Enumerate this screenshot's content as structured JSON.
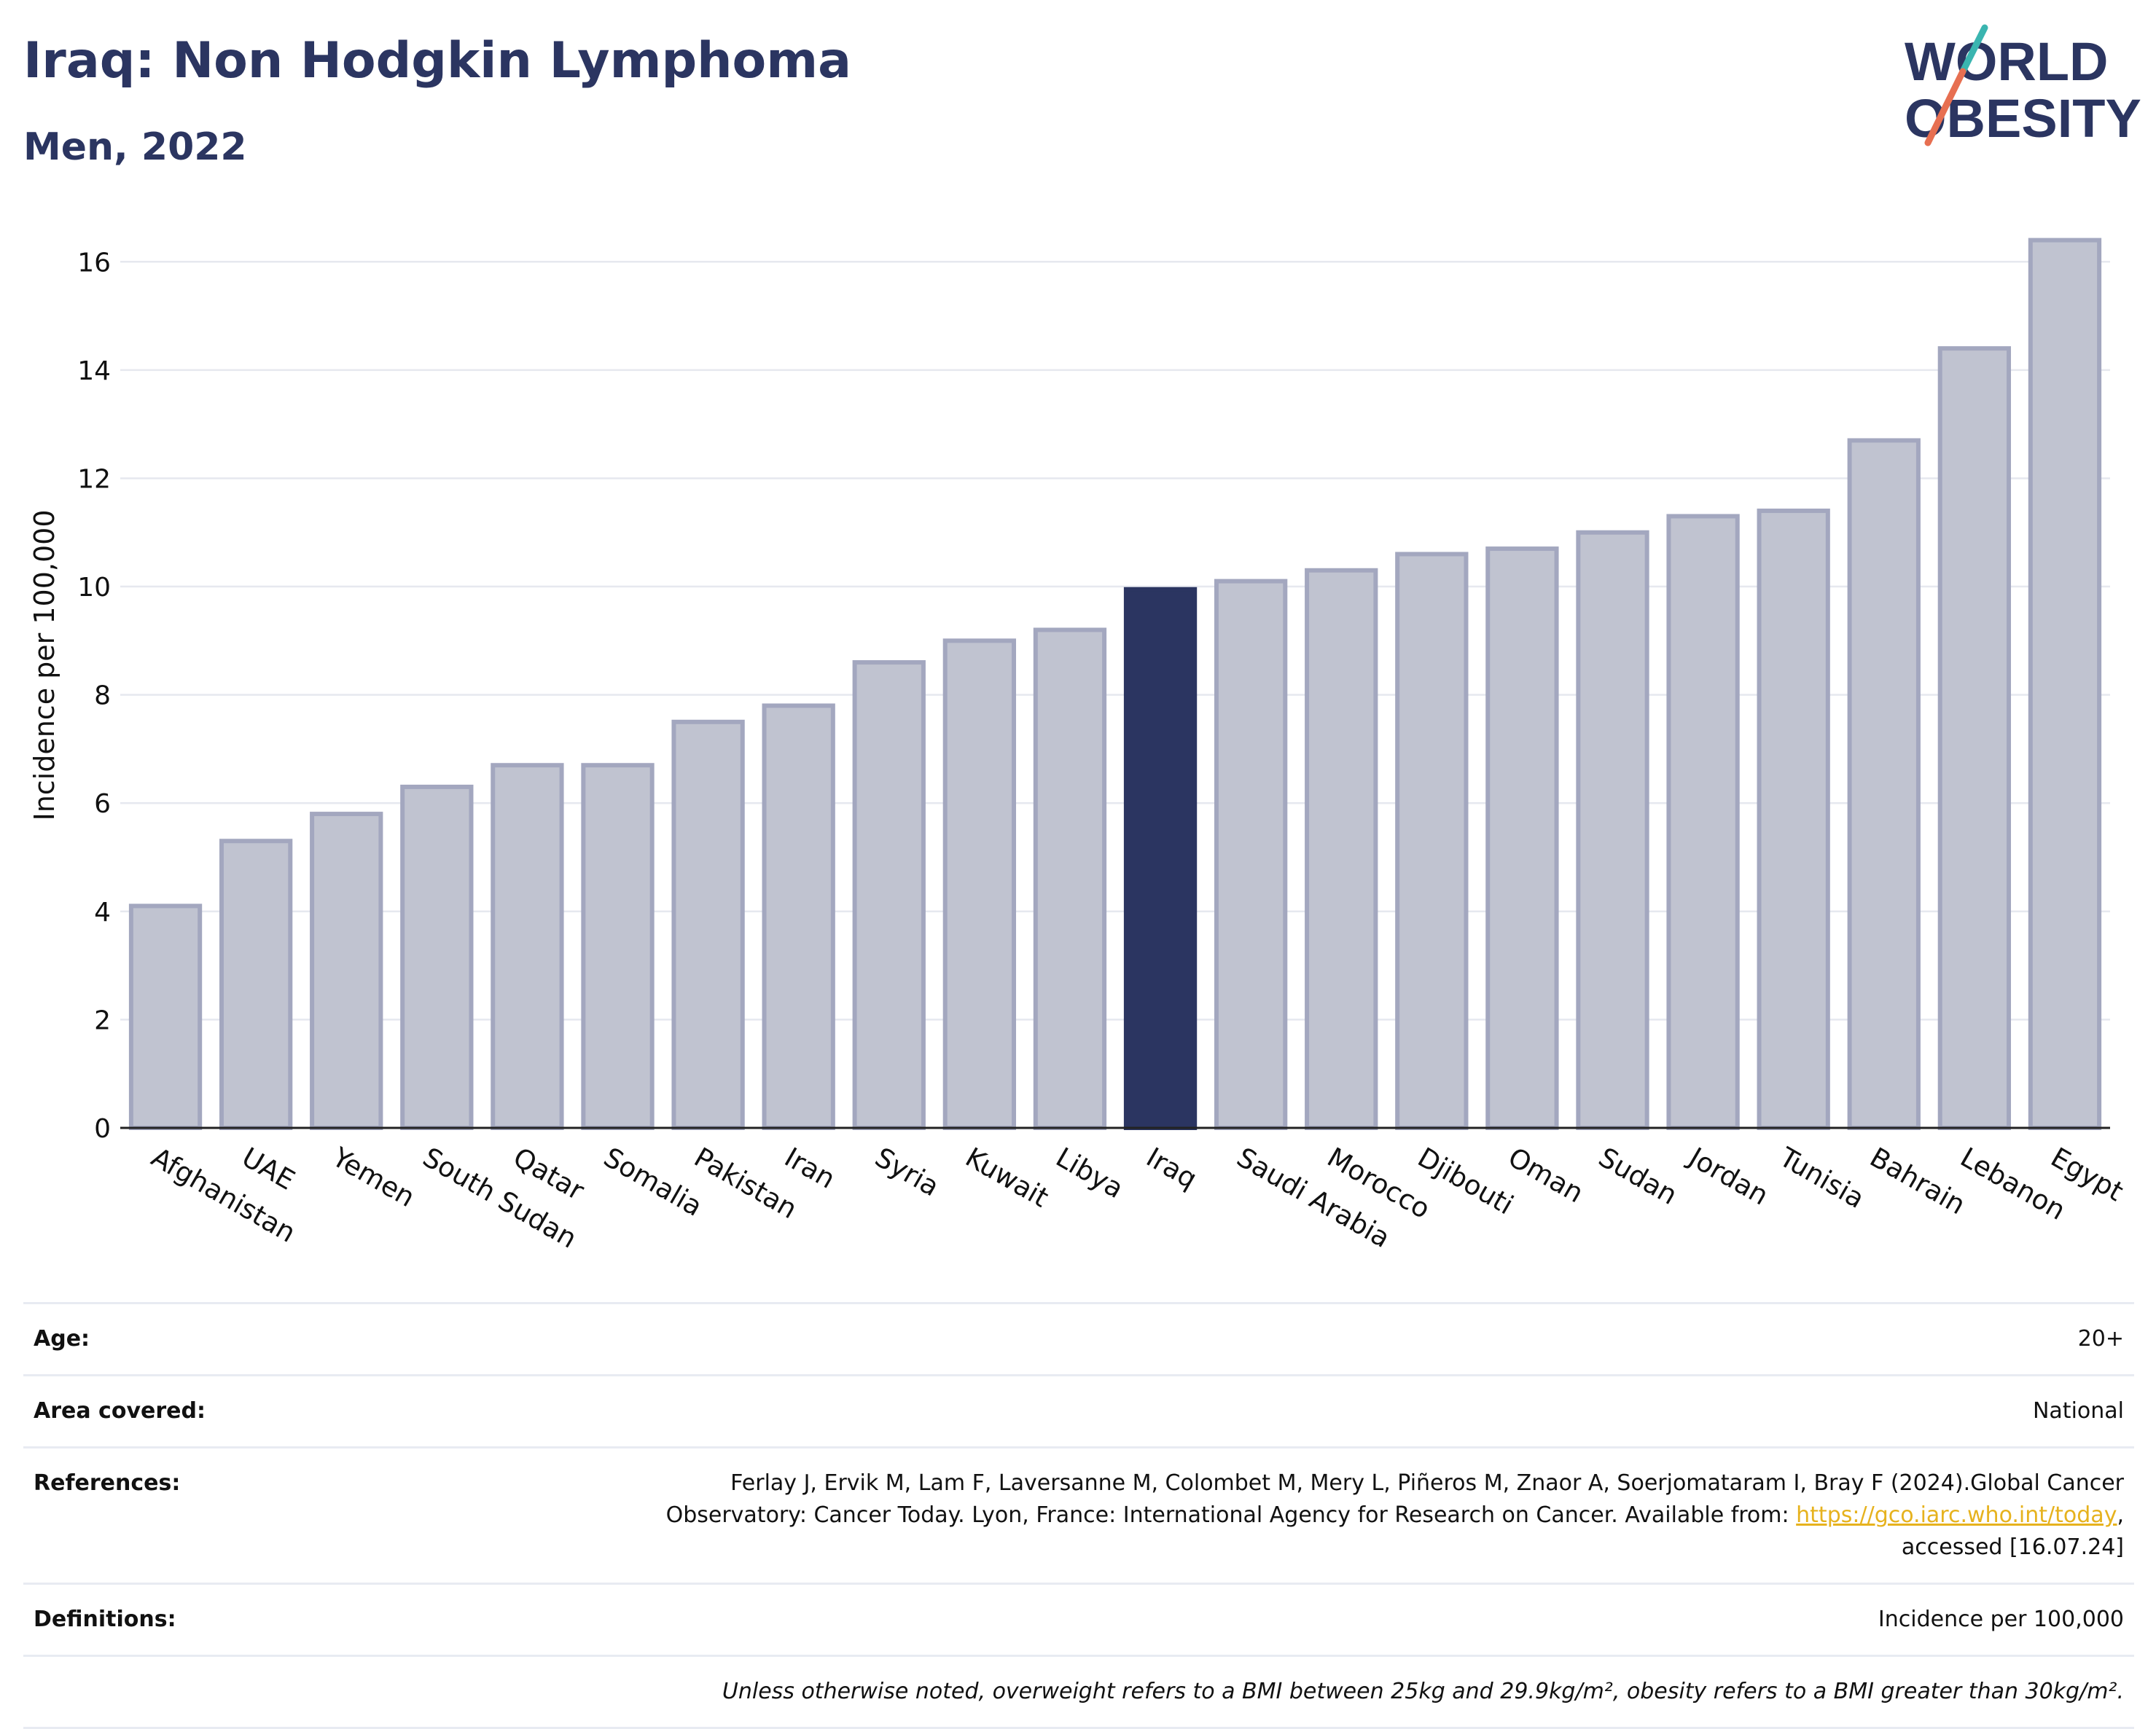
{
  "header": {
    "title": "Iraq: Non Hodgkin Lymphoma",
    "subtitle": "Men, 2022"
  },
  "logo": {
    "line1": "WORLD",
    "line2": "OBESITY",
    "accent_colors": [
      "#3ab5b0",
      "#e76f51"
    ]
  },
  "chart_data": {
    "type": "bar",
    "categories": [
      "Afghanistan",
      "UAE",
      "Yemen",
      "South Sudan",
      "Qatar",
      "Somalia",
      "Pakistan",
      "Iran",
      "Syria",
      "Kuwait",
      "Libya",
      "Iraq",
      "Saudi Arabia",
      "Morocco",
      "Djibouti",
      "Oman",
      "Sudan",
      "Jordan",
      "Tunisia",
      "Bahrain",
      "Lebanon",
      "Egypt"
    ],
    "values": [
      4.1,
      5.3,
      5.8,
      6.3,
      6.7,
      6.7,
      7.5,
      7.8,
      8.6,
      9.0,
      9.2,
      9.95,
      10.1,
      10.3,
      10.6,
      10.7,
      11.0,
      11.3,
      11.4,
      12.7,
      14.4,
      16.4
    ],
    "highlight": "Iraq",
    "ylabel": "Incidence per 100,000",
    "xlabel": "",
    "ylim": [
      0,
      17
    ],
    "yticks": [
      0,
      2,
      4,
      6,
      8,
      10,
      12,
      14,
      16
    ],
    "grid": true,
    "colors": {
      "bar": "#c0c3d0",
      "bar_border": "#a3a7bf",
      "highlight": "#2b3561"
    }
  },
  "meta": {
    "age_label": "Age:",
    "age_value": "20+",
    "area_label": "Area covered:",
    "area_value": "National",
    "references_label": "References:",
    "references_line1": "Ferlay J, Ervik M, Lam F, Laversanne M, Colombet M, Mery L, Piñeros M, Znaor A, Soerjomataram I, Bray F (2024).Global Cancer",
    "references_line2_pre": "Observatory: Cancer Today. Lyon, France: International Agency for Research on Cancer. Available from: ",
    "references_link": "https://gco.iarc.who.int/today",
    "references_line2_post": ",",
    "references_line3": "accessed [16.07.24]",
    "definitions_label": "Definitions:",
    "definitions_value": "Incidence per 100,000",
    "note": "Unless otherwise noted, overweight refers to a BMI between 25kg and 29.9kg/m², obesity refers to a BMI greater than 30kg/m²."
  }
}
